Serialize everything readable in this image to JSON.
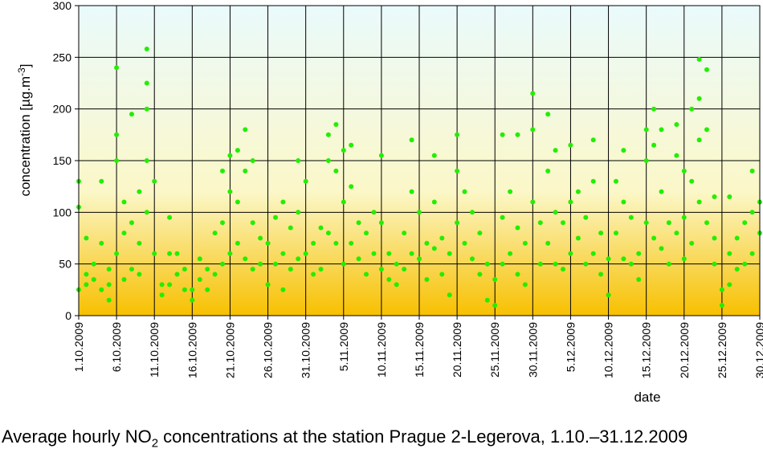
{
  "chart_data": {
    "type": "scatter",
    "title": "",
    "xlabel": "date",
    "ylabel": "concentration [µg.m",
    "ylabel_sup": "-3",
    "ylabel_end": "]",
    "ylim": [
      0,
      300
    ],
    "yticks": [
      0,
      50,
      100,
      150,
      200,
      250,
      300
    ],
    "x_range": [
      "2009-10-01",
      "2009-12-30"
    ],
    "xticks": [
      "1.10.2009",
      "6.10.2009",
      "11.10.2009",
      "16.10.2009",
      "21.10.2009",
      "26.10.2009",
      "31.10.2009",
      "5.11.2009",
      "10.11.2009",
      "15.11.2009",
      "20.11.2009",
      "25.11.2009",
      "30.11.2009",
      "5.12.2009",
      "10.12.2009",
      "15.12.2009",
      "20.12.2009",
      "25.12.2009",
      "30.12.2009"
    ],
    "grid": true,
    "marker_color": "#22ee00",
    "background_gradient": [
      "#eafafc",
      "#fbf7c8",
      "#f7c000"
    ],
    "series": [
      {
        "points": [
          [
            "2009-10-01",
            25
          ],
          [
            "2009-10-01",
            105
          ],
          [
            "2009-10-01",
            130
          ],
          [
            "2009-10-02",
            40
          ],
          [
            "2009-10-02",
            75
          ],
          [
            "2009-10-02",
            30
          ],
          [
            "2009-10-03",
            50
          ],
          [
            "2009-10-03",
            35
          ],
          [
            "2009-10-04",
            25
          ],
          [
            "2009-10-04",
            70
          ],
          [
            "2009-10-04",
            130
          ],
          [
            "2009-10-05",
            15
          ],
          [
            "2009-10-05",
            30
          ],
          [
            "2009-10-05",
            45
          ],
          [
            "2009-10-06",
            240
          ],
          [
            "2009-10-06",
            175
          ],
          [
            "2009-10-06",
            150
          ],
          [
            "2009-10-06",
            60
          ],
          [
            "2009-10-07",
            110
          ],
          [
            "2009-10-07",
            80
          ],
          [
            "2009-10-07",
            35
          ],
          [
            "2009-10-08",
            195
          ],
          [
            "2009-10-08",
            90
          ],
          [
            "2009-10-08",
            45
          ],
          [
            "2009-10-09",
            120
          ],
          [
            "2009-10-09",
            70
          ],
          [
            "2009-10-09",
            40
          ],
          [
            "2009-10-10",
            258
          ],
          [
            "2009-10-10",
            225
          ],
          [
            "2009-10-10",
            200
          ],
          [
            "2009-10-10",
            150
          ],
          [
            "2009-10-10",
            100
          ],
          [
            "2009-10-11",
            130
          ],
          [
            "2009-10-11",
            60
          ],
          [
            "2009-10-12",
            30
          ],
          [
            "2009-10-12",
            20
          ],
          [
            "2009-10-13",
            95
          ],
          [
            "2009-10-13",
            60
          ],
          [
            "2009-10-13",
            30
          ],
          [
            "2009-10-14",
            60
          ],
          [
            "2009-10-14",
            40
          ],
          [
            "2009-10-15",
            45
          ],
          [
            "2009-10-15",
            25
          ],
          [
            "2009-10-16",
            25
          ],
          [
            "2009-10-16",
            15
          ],
          [
            "2009-10-17",
            55
          ],
          [
            "2009-10-17",
            35
          ],
          [
            "2009-10-18",
            45
          ],
          [
            "2009-10-18",
            25
          ],
          [
            "2009-10-19",
            80
          ],
          [
            "2009-10-19",
            40
          ],
          [
            "2009-10-20",
            140
          ],
          [
            "2009-10-20",
            90
          ],
          [
            "2009-10-20",
            50
          ],
          [
            "2009-10-21",
            155
          ],
          [
            "2009-10-21",
            120
          ],
          [
            "2009-10-21",
            60
          ],
          [
            "2009-10-22",
            160
          ],
          [
            "2009-10-22",
            110
          ],
          [
            "2009-10-22",
            70
          ],
          [
            "2009-10-23",
            180
          ],
          [
            "2009-10-23",
            140
          ],
          [
            "2009-10-23",
            55
          ],
          [
            "2009-10-24",
            150
          ],
          [
            "2009-10-24",
            90
          ],
          [
            "2009-10-24",
            45
          ],
          [
            "2009-10-25",
            75
          ],
          [
            "2009-10-25",
            50
          ],
          [
            "2009-10-26",
            70
          ],
          [
            "2009-10-26",
            30
          ],
          [
            "2009-10-27",
            95
          ],
          [
            "2009-10-27",
            50
          ],
          [
            "2009-10-28",
            110
          ],
          [
            "2009-10-28",
            60
          ],
          [
            "2009-10-28",
            25
          ],
          [
            "2009-10-29",
            85
          ],
          [
            "2009-10-29",
            45
          ],
          [
            "2009-10-30",
            150
          ],
          [
            "2009-10-30",
            100
          ],
          [
            "2009-10-30",
            55
          ],
          [
            "2009-10-31",
            130
          ],
          [
            "2009-10-31",
            60
          ],
          [
            "2009-11-01",
            70
          ],
          [
            "2009-11-01",
            40
          ],
          [
            "2009-11-02",
            85
          ],
          [
            "2009-11-02",
            45
          ],
          [
            "2009-11-03",
            175
          ],
          [
            "2009-11-03",
            150
          ],
          [
            "2009-11-03",
            80
          ],
          [
            "2009-11-04",
            185
          ],
          [
            "2009-11-04",
            140
          ],
          [
            "2009-11-04",
            70
          ],
          [
            "2009-11-05",
            160
          ],
          [
            "2009-11-05",
            110
          ],
          [
            "2009-11-05",
            50
          ],
          [
            "2009-11-06",
            165
          ],
          [
            "2009-11-06",
            125
          ],
          [
            "2009-11-06",
            70
          ],
          [
            "2009-11-07",
            90
          ],
          [
            "2009-11-07",
            55
          ],
          [
            "2009-11-08",
            80
          ],
          [
            "2009-11-08",
            40
          ],
          [
            "2009-11-09",
            100
          ],
          [
            "2009-11-09",
            60
          ],
          [
            "2009-11-10",
            155
          ],
          [
            "2009-11-10",
            90
          ],
          [
            "2009-11-10",
            45
          ],
          [
            "2009-11-11",
            60
          ],
          [
            "2009-11-11",
            35
          ],
          [
            "2009-11-12",
            50
          ],
          [
            "2009-11-12",
            30
          ],
          [
            "2009-11-13",
            80
          ],
          [
            "2009-11-13",
            45
          ],
          [
            "2009-11-14",
            170
          ],
          [
            "2009-11-14",
            120
          ],
          [
            "2009-11-14",
            60
          ],
          [
            "2009-11-15",
            100
          ],
          [
            "2009-11-15",
            55
          ],
          [
            "2009-11-16",
            70
          ],
          [
            "2009-11-16",
            35
          ],
          [
            "2009-11-17",
            155
          ],
          [
            "2009-11-17",
            110
          ],
          [
            "2009-11-17",
            65
          ],
          [
            "2009-11-18",
            75
          ],
          [
            "2009-11-18",
            40
          ],
          [
            "2009-11-19",
            60
          ],
          [
            "2009-11-19",
            20
          ],
          [
            "2009-11-20",
            175
          ],
          [
            "2009-11-20",
            140
          ],
          [
            "2009-11-20",
            90
          ],
          [
            "2009-11-21",
            120
          ],
          [
            "2009-11-21",
            70
          ],
          [
            "2009-11-22",
            100
          ],
          [
            "2009-11-22",
            55
          ],
          [
            "2009-11-23",
            80
          ],
          [
            "2009-11-23",
            40
          ],
          [
            "2009-11-24",
            50
          ],
          [
            "2009-11-24",
            15
          ],
          [
            "2009-11-25",
            35
          ],
          [
            "2009-11-25",
            10
          ],
          [
            "2009-11-26",
            175
          ],
          [
            "2009-11-26",
            95
          ],
          [
            "2009-11-26",
            50
          ],
          [
            "2009-11-27",
            120
          ],
          [
            "2009-11-27",
            60
          ],
          [
            "2009-11-28",
            175
          ],
          [
            "2009-11-28",
            85
          ],
          [
            "2009-11-28",
            40
          ],
          [
            "2009-11-29",
            70
          ],
          [
            "2009-11-29",
            30
          ],
          [
            "2009-11-30",
            215
          ],
          [
            "2009-11-30",
            180
          ],
          [
            "2009-11-30",
            110
          ],
          [
            "2009-12-01",
            90
          ],
          [
            "2009-12-01",
            50
          ],
          [
            "2009-12-02",
            195
          ],
          [
            "2009-12-02",
            140
          ],
          [
            "2009-12-02",
            70
          ],
          [
            "2009-12-03",
            160
          ],
          [
            "2009-12-03",
            100
          ],
          [
            "2009-12-03",
            50
          ],
          [
            "2009-12-04",
            90
          ],
          [
            "2009-12-04",
            45
          ],
          [
            "2009-12-05",
            165
          ],
          [
            "2009-12-05",
            110
          ],
          [
            "2009-12-05",
            60
          ],
          [
            "2009-12-06",
            120
          ],
          [
            "2009-12-06",
            75
          ],
          [
            "2009-12-07",
            95
          ],
          [
            "2009-12-07",
            50
          ],
          [
            "2009-12-08",
            170
          ],
          [
            "2009-12-08",
            130
          ],
          [
            "2009-12-08",
            60
          ],
          [
            "2009-12-09",
            80
          ],
          [
            "2009-12-09",
            40
          ],
          [
            "2009-12-10",
            20
          ],
          [
            "2009-12-10",
            55
          ],
          [
            "2009-12-11",
            130
          ],
          [
            "2009-12-11",
            80
          ],
          [
            "2009-12-12",
            160
          ],
          [
            "2009-12-12",
            110
          ],
          [
            "2009-12-12",
            55
          ],
          [
            "2009-12-13",
            95
          ],
          [
            "2009-12-13",
            50
          ],
          [
            "2009-12-14",
            60
          ],
          [
            "2009-12-14",
            35
          ],
          [
            "2009-12-15",
            180
          ],
          [
            "2009-12-15",
            150
          ],
          [
            "2009-12-15",
            90
          ],
          [
            "2009-12-16",
            200
          ],
          [
            "2009-12-16",
            165
          ],
          [
            "2009-12-16",
            75
          ],
          [
            "2009-12-17",
            180
          ],
          [
            "2009-12-17",
            120
          ],
          [
            "2009-12-17",
            65
          ],
          [
            "2009-12-18",
            90
          ],
          [
            "2009-12-18",
            50
          ],
          [
            "2009-12-19",
            185
          ],
          [
            "2009-12-19",
            155
          ],
          [
            "2009-12-19",
            80
          ],
          [
            "2009-12-20",
            140
          ],
          [
            "2009-12-20",
            95
          ],
          [
            "2009-12-20",
            55
          ],
          [
            "2009-12-21",
            200
          ],
          [
            "2009-12-21",
            130
          ],
          [
            "2009-12-21",
            70
          ],
          [
            "2009-12-22",
            248
          ],
          [
            "2009-12-22",
            210
          ],
          [
            "2009-12-22",
            170
          ],
          [
            "2009-12-22",
            110
          ],
          [
            "2009-12-23",
            238
          ],
          [
            "2009-12-23",
            180
          ],
          [
            "2009-12-23",
            90
          ],
          [
            "2009-12-24",
            115
          ],
          [
            "2009-12-24",
            75
          ],
          [
            "2009-12-24",
            50
          ],
          [
            "2009-12-25",
            25
          ],
          [
            "2009-12-25",
            10
          ],
          [
            "2009-12-26",
            115
          ],
          [
            "2009-12-26",
            60
          ],
          [
            "2009-12-26",
            30
          ],
          [
            "2009-12-27",
            75
          ],
          [
            "2009-12-27",
            45
          ],
          [
            "2009-12-28",
            90
          ],
          [
            "2009-12-28",
            50
          ],
          [
            "2009-12-29",
            140
          ],
          [
            "2009-12-29",
            100
          ],
          [
            "2009-12-29",
            60
          ],
          [
            "2009-12-30",
            110
          ],
          [
            "2009-12-30",
            80
          ]
        ]
      }
    ]
  },
  "caption": {
    "prefix": "Average hourly NO",
    "subscript": "2",
    "suffix": " concentrations at the station Prague 2-Legerova, 1.10.–31.12.2009"
  }
}
